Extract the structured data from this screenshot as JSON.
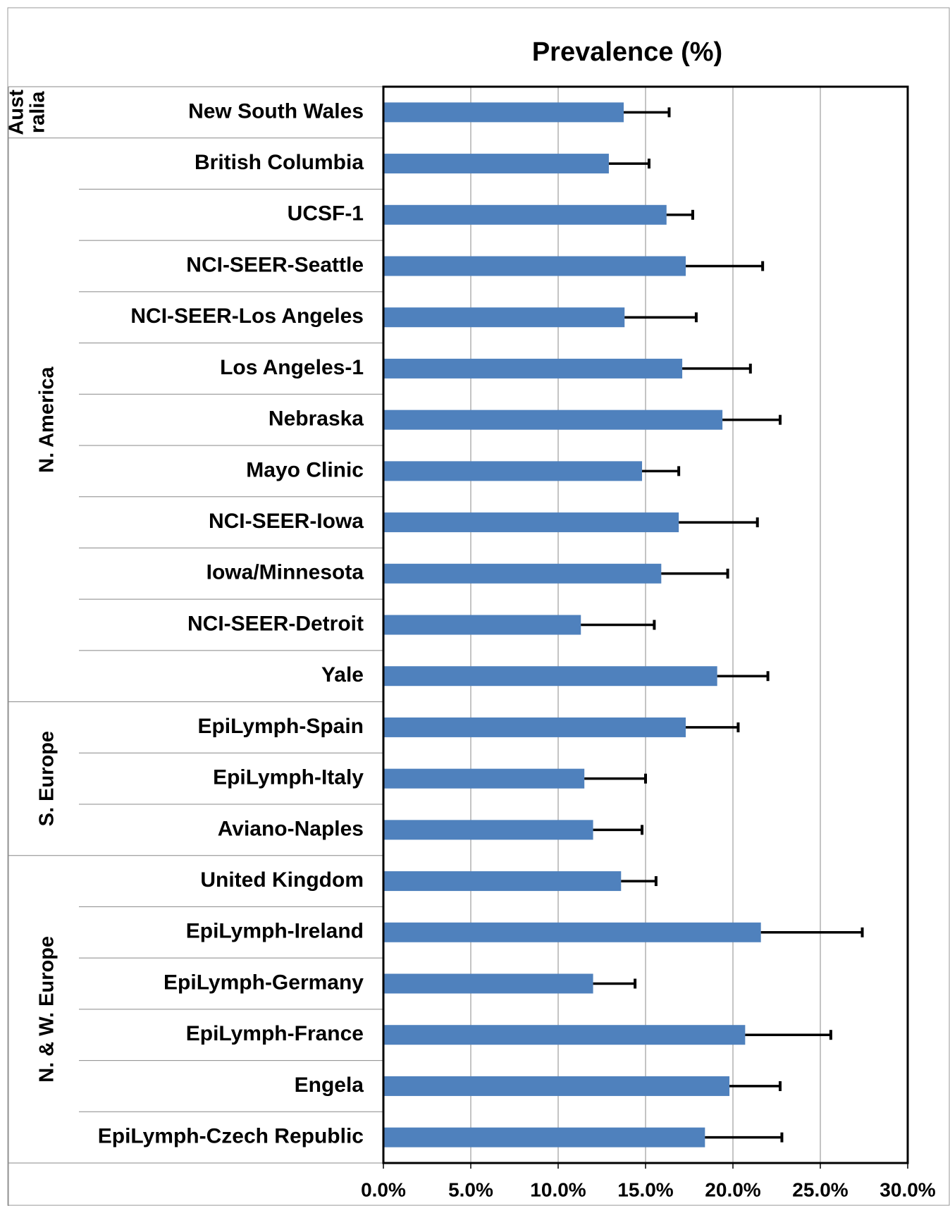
{
  "chart_data": {
    "type": "grouped-hbar-error",
    "title": "Prevalence (%)",
    "color": "#4f81bd",
    "error_color": "#000000",
    "grid": true,
    "xlim": [
      0,
      30
    ],
    "xticks": [
      {
        "value": 0,
        "label": "0.0%"
      },
      {
        "value": 5,
        "label": "5.0%"
      },
      {
        "value": 10,
        "label": "10.0%"
      },
      {
        "value": 15,
        "label": "15.0%"
      },
      {
        "value": 20,
        "label": "20.0%"
      },
      {
        "value": 25,
        "label": "25.0%"
      },
      {
        "value": 30,
        "label": "30.0%"
      }
    ],
    "groups": [
      {
        "label_lines": [
          "Aust",
          "ralia"
        ],
        "categories": [
          "New South Wales"
        ],
        "values": [
          13.75
        ],
        "errors": [
          2.6
        ]
      },
      {
        "label_lines": [
          "N. America"
        ],
        "categories": [
          "British Columbia",
          "UCSF-1",
          "NCI-SEER-Seattle",
          "NCI-SEER-Los Angeles",
          "Los Angeles-1",
          "Nebraska",
          "Mayo Clinic",
          "NCI-SEER-Iowa",
          "Iowa/Minnesota",
          "NCI-SEER-Detroit",
          "Yale"
        ],
        "values": [
          12.9,
          16.2,
          17.3,
          13.8,
          17.1,
          19.4,
          14.8,
          16.9,
          15.9,
          11.3,
          19.1
        ],
        "errors": [
          2.3,
          1.5,
          4.4,
          4.1,
          3.9,
          3.3,
          2.1,
          4.5,
          3.8,
          4.2,
          2.9
        ]
      },
      {
        "label_lines": [
          "S. Europe"
        ],
        "categories": [
          "EpiLymph-Spain",
          "EpiLymph-Italy",
          "Aviano-Naples"
        ],
        "values": [
          17.3,
          11.5,
          12.0
        ],
        "errors": [
          3.0,
          3.5,
          2.8
        ]
      },
      {
        "label_lines": [
          "N. & W. Europe"
        ],
        "categories": [
          "United Kingdom",
          "EpiLymph-Ireland",
          "EpiLymph-Germany",
          "EpiLymph-France",
          "Engela",
          "EpiLymph-Czech Republic"
        ],
        "values": [
          13.6,
          21.6,
          12.0,
          20.7,
          19.8,
          18.4
        ],
        "errors": [
          2.0,
          5.8,
          2.4,
          4.9,
          2.9,
          4.4
        ]
      }
    ]
  }
}
